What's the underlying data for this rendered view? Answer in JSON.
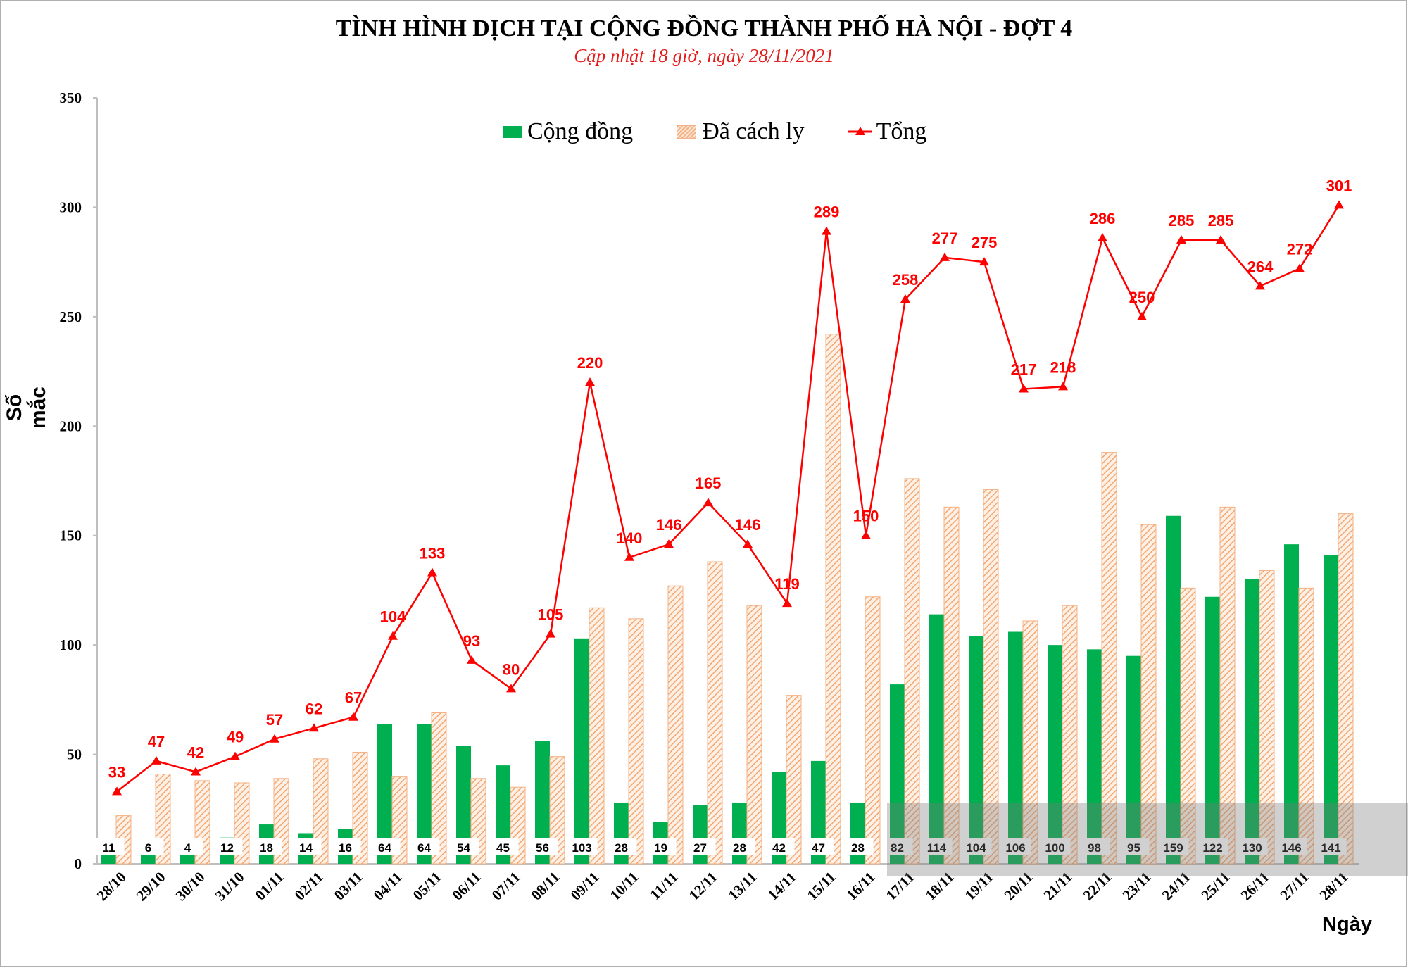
{
  "title": "TÌNH HÌNH DỊCH TẠI CỘNG ĐỒNG THÀNH PHỐ HÀ NỘI - ĐỢT 4",
  "subtitle": "Cập nhật 18 giờ, ngày 28/11/2021",
  "colors": {
    "community": "#00b050",
    "quarantined": "#f4b183",
    "total": "#ff0000"
  },
  "chart_data": {
    "type": "bar",
    "title": "TÌNH HÌNH DỊCH TẠI CỘNG ĐỒNG THÀNH PHỐ HÀ NỘI - ĐỢT 4",
    "subtitle": "Cập nhật 18 giờ, ngày 28/11/2021",
    "xlabel": "Ngày",
    "ylabel": "Số mắc",
    "ylim": [
      0,
      350
    ],
    "yticks": [
      0,
      50,
      100,
      150,
      200,
      250,
      300,
      350
    ],
    "legend_position": "top-center",
    "grid": false,
    "categories": [
      "28/10",
      "29/10",
      "30/10",
      "31/10",
      "01/11",
      "02/11",
      "03/11",
      "04/11",
      "05/11",
      "06/11",
      "07/11",
      "08/11",
      "09/11",
      "10/11",
      "11/11",
      "12/11",
      "13/11",
      "14/11",
      "15/11",
      "16/11",
      "17/11",
      "18/11",
      "19/11",
      "20/11",
      "21/11",
      "22/11",
      "23/11",
      "24/11",
      "25/11",
      "26/11",
      "27/11",
      "28/11"
    ],
    "series": [
      {
        "name": "Cộng đồng",
        "type": "bar",
        "values": [
          11,
          6,
          4,
          12,
          18,
          14,
          16,
          64,
          64,
          54,
          45,
          56,
          103,
          28,
          19,
          27,
          28,
          42,
          47,
          28,
          82,
          114,
          104,
          106,
          100,
          98,
          95,
          159,
          122,
          130,
          146,
          141
        ]
      },
      {
        "name": "Đã cách ly",
        "type": "bar",
        "values": [
          22,
          41,
          38,
          37,
          39,
          48,
          51,
          40,
          69,
          39,
          35,
          49,
          117,
          112,
          127,
          138,
          118,
          77,
          242,
          122,
          176,
          163,
          171,
          111,
          118,
          188,
          155,
          126,
          163,
          134,
          126,
          160
        ]
      },
      {
        "name": "Tổng",
        "type": "line",
        "values": [
          33,
          47,
          42,
          49,
          57,
          62,
          67,
          104,
          133,
          93,
          80,
          105,
          220,
          140,
          146,
          165,
          146,
          119,
          289,
          150,
          258,
          277,
          275,
          217,
          218,
          286,
          250,
          285,
          285,
          264,
          272,
          301
        ]
      }
    ]
  }
}
